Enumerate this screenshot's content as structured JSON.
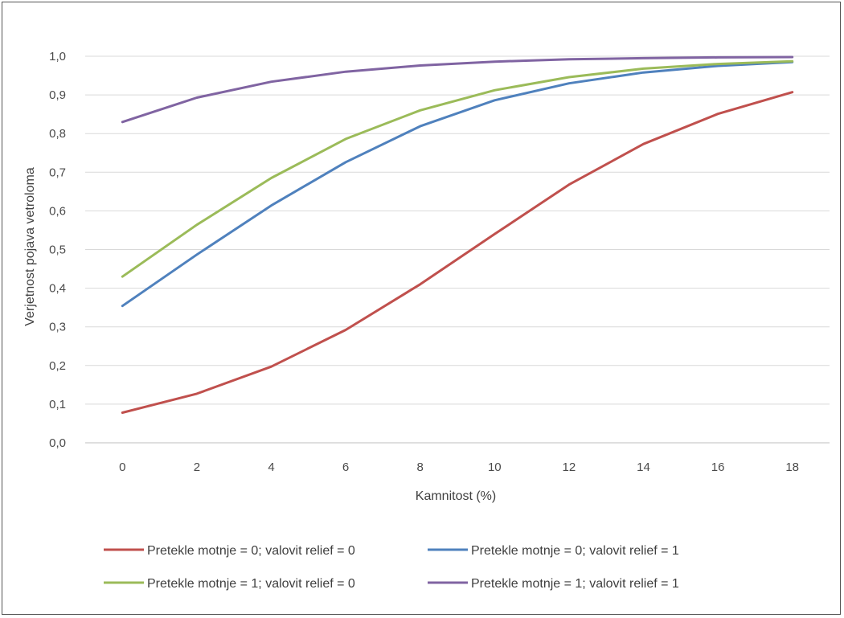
{
  "chart_data": {
    "type": "line",
    "xlabel": "Kamnitost (%)",
    "ylabel": "Verjetnost pojava vetroloma",
    "x": [
      0,
      2,
      4,
      6,
      8,
      10,
      12,
      14,
      16,
      18
    ],
    "x_tick_labels": [
      "0",
      "2",
      "4",
      "6",
      "8",
      "10",
      "12",
      "14",
      "16",
      "18"
    ],
    "ylim": [
      0,
      1
    ],
    "y_ticks": [
      0,
      0.1,
      0.2,
      0.3,
      0.4,
      0.5,
      0.6,
      0.7,
      0.8,
      0.9,
      1.0
    ],
    "y_tick_labels": [
      "0,0",
      "0,1",
      "0,2",
      "0,3",
      "0,4",
      "0,5",
      "0,6",
      "0,7",
      "0,8",
      "0,9",
      "1,0"
    ],
    "grid": true,
    "legend_position": "bottom",
    "series": [
      {
        "name": "Pretekle motnje = 0; valovit relief = 0",
        "color": "#c0504d",
        "values": [
          0.078,
          0.127,
          0.197,
          0.292,
          0.41,
          0.54,
          0.668,
          0.773,
          0.851,
          0.907
        ]
      },
      {
        "name": "Pretekle motnje = 0; valovit relief = 1",
        "color": "#4f81bd",
        "values": [
          0.354,
          0.487,
          0.614,
          0.726,
          0.819,
          0.886,
          0.93,
          0.958,
          0.975,
          0.985
        ]
      },
      {
        "name": "Pretekle motnje = 1; valovit relief = 0",
        "color": "#9bbb59",
        "values": [
          0.43,
          0.564,
          0.685,
          0.786,
          0.86,
          0.912,
          0.946,
          0.968,
          0.98,
          0.987
        ]
      },
      {
        "name": "Pretekle motnje = 1; valovit relief = 1",
        "color": "#8064a2",
        "values": [
          0.83,
          0.893,
          0.934,
          0.96,
          0.976,
          0.986,
          0.992,
          0.995,
          0.997,
          0.998
        ]
      }
    ]
  }
}
